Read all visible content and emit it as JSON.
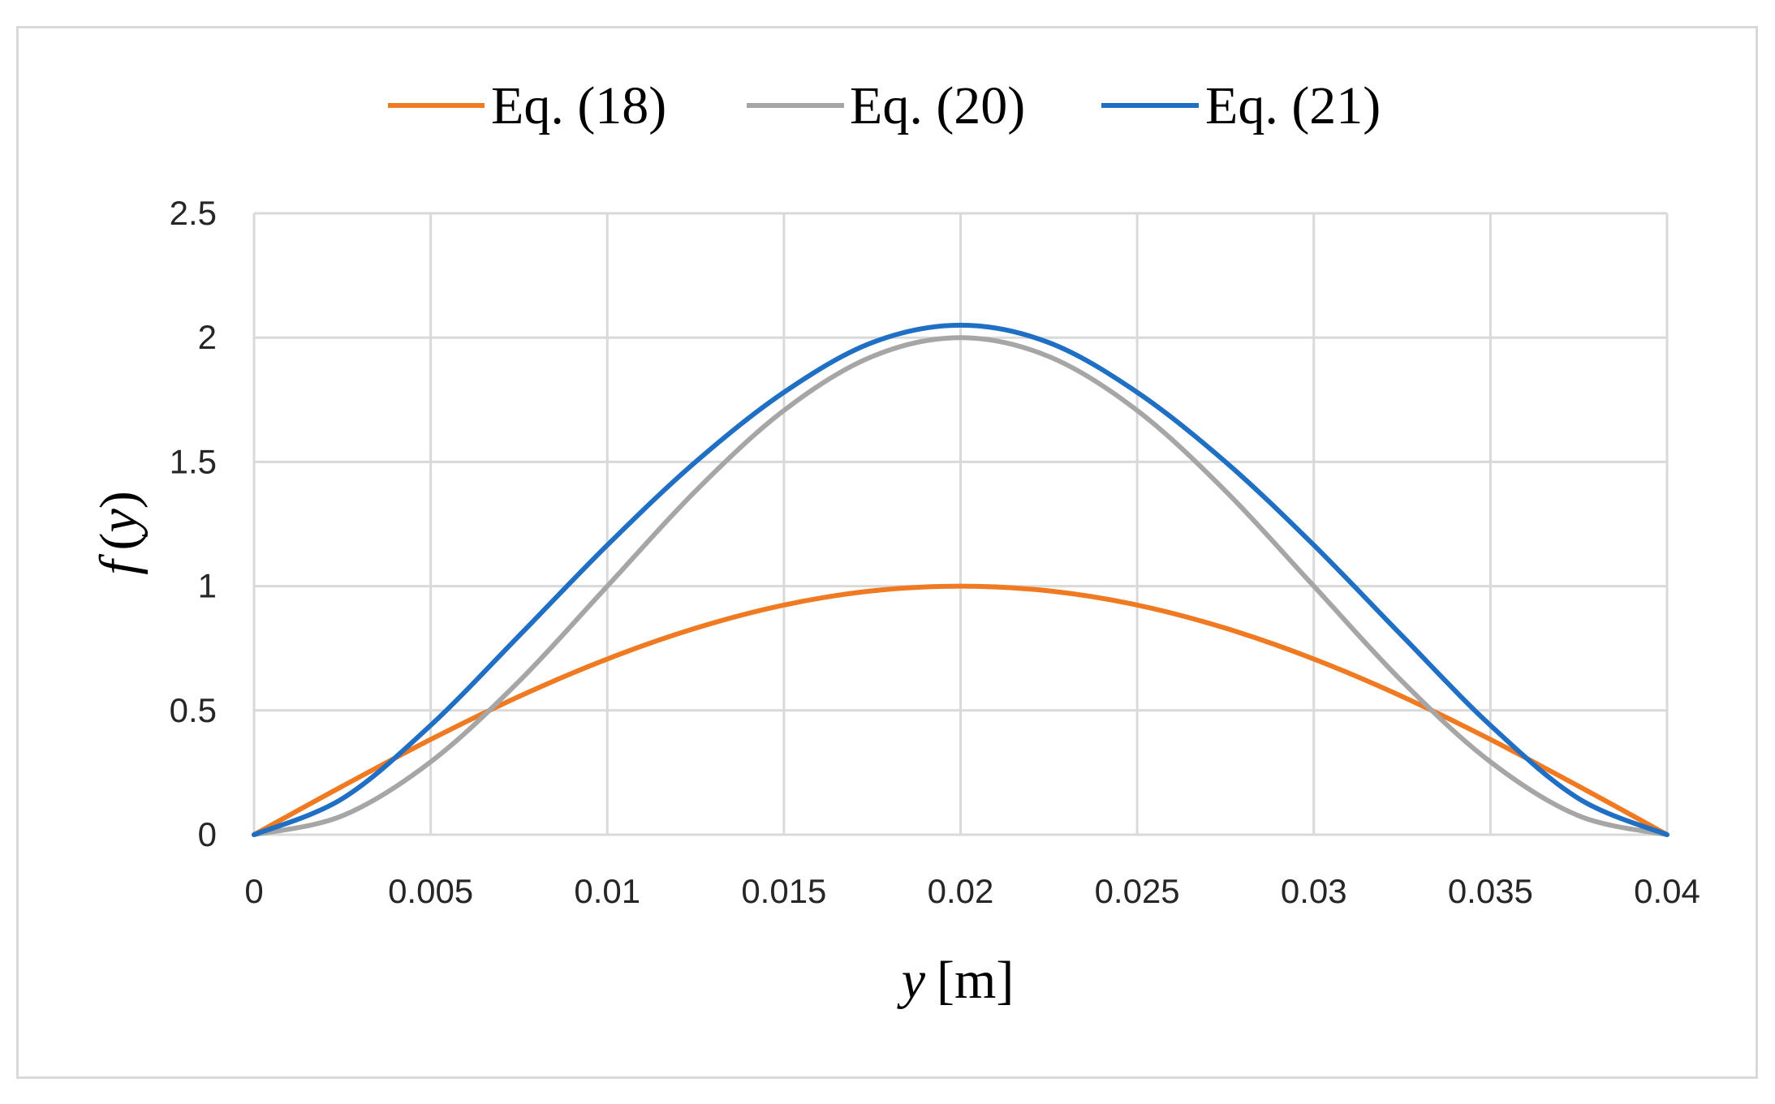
{
  "chart_data": {
    "type": "line",
    "xlabel_var": "y",
    "xlabel_unit": "[m]",
    "ylabel_func": "f",
    "ylabel_arg_open": "(",
    "ylabel_arg": "y",
    "ylabel_arg_close": ")",
    "xlim": [
      0,
      0.04
    ],
    "ylim": [
      0,
      2.5
    ],
    "x_ticks": [
      "0",
      "0.005",
      "0.01",
      "0.015",
      "0.02",
      "0.025",
      "0.03",
      "0.035",
      "0.04"
    ],
    "y_ticks": [
      "0",
      "0.5",
      "1",
      "1.5",
      "2",
      "2.5"
    ],
    "grid": true,
    "legend_position": "top",
    "series": [
      {
        "name": "Eq. (18)",
        "color": "#f07a22",
        "x": [
          0,
          0.0025,
          0.005,
          0.0075,
          0.01,
          0.0125,
          0.015,
          0.0175,
          0.02,
          0.0225,
          0.025,
          0.0275,
          0.03,
          0.0325,
          0.035,
          0.0375,
          0.04
        ],
        "y": [
          0,
          0.195,
          0.383,
          0.556,
          0.707,
          0.831,
          0.924,
          0.981,
          1.0,
          0.981,
          0.924,
          0.831,
          0.707,
          0.556,
          0.383,
          0.195,
          0
        ]
      },
      {
        "name": "Eq. (20)",
        "color": "#a6a6a6",
        "x": [
          0,
          0.0025,
          0.005,
          0.0075,
          0.01,
          0.0125,
          0.015,
          0.0175,
          0.02,
          0.0225,
          0.025,
          0.0275,
          0.03,
          0.0325,
          0.035,
          0.0375,
          0.04
        ],
        "y": [
          0,
          0.076,
          0.293,
          0.617,
          1.0,
          1.383,
          1.707,
          1.924,
          2.0,
          1.924,
          1.707,
          1.383,
          1.0,
          0.617,
          0.293,
          0.076,
          0
        ]
      },
      {
        "name": "Eq. (21)",
        "color": "#1f6fc5",
        "x": [
          0,
          0.0025,
          0.005,
          0.0075,
          0.01,
          0.0125,
          0.015,
          0.0175,
          0.02,
          0.0225,
          0.025,
          0.0275,
          0.03,
          0.0325,
          0.035,
          0.0375,
          0.04
        ],
        "y": [
          0,
          0.145,
          0.44,
          0.8,
          1.165,
          1.5,
          1.78,
          1.98,
          2.05,
          1.98,
          1.78,
          1.5,
          1.165,
          0.8,
          0.44,
          0.145,
          0
        ]
      }
    ]
  }
}
